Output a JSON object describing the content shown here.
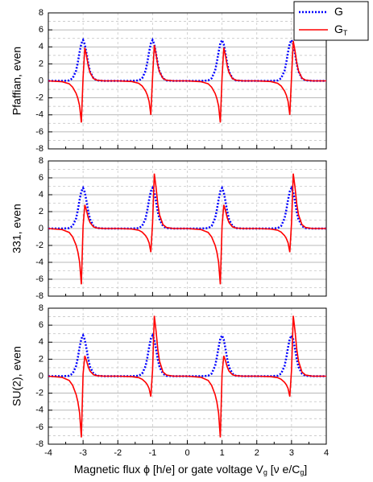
{
  "chart_data": [
    {
      "type": "line",
      "ylabel": "Pfaffian, even",
      "legend": "upper right",
      "x": [
        -4,
        -3.6,
        -3.4,
        -3.3,
        -3.2,
        -3.15,
        -3.1,
        -3.05,
        -3,
        -2.95,
        -2.9,
        -2.85,
        -2.8,
        -2.7,
        -2.6,
        -2.4,
        -2,
        -1.6,
        -1.4,
        -1.3,
        -1.2,
        -1.15,
        -1.1,
        -1.05,
        -1,
        -0.95,
        -0.9,
        -0.85,
        -0.8,
        -0.7,
        -0.6,
        -0.4,
        0,
        0.4,
        0.6,
        0.7,
        0.8,
        0.85,
        0.9,
        0.95,
        1,
        1.05,
        1.1,
        1.15,
        1.2,
        1.3,
        1.4,
        1.6,
        2,
        2.4,
        2.6,
        2.7,
        2.8,
        2.85,
        2.9,
        2.95,
        3,
        3.05,
        3.1,
        3.15,
        3.2,
        3.3,
        3.4,
        3.6,
        4
      ],
      "xlim": [
        -4,
        4
      ],
      "xticks": [
        -4,
        -3,
        -2,
        -1,
        0,
        1,
        2,
        3,
        4
      ],
      "xminor": [
        -3.5,
        -2.5,
        -1.5,
        -0.5,
        0.5,
        1.5,
        2.5,
        3.5
      ],
      "ylim": [
        -8,
        8
      ],
      "yticks": [
        -8,
        -6,
        -4,
        -2,
        0,
        2,
        4,
        6,
        8
      ],
      "yminor": [
        -7,
        -5,
        -3,
        -1,
        1,
        3,
        5,
        7
      ],
      "grid": true,
      "series": [
        {
          "name": "G",
          "color": "#0000ff",
          "style": "dotted",
          "values": [
            0,
            0,
            0.05,
            0.3,
            1.2,
            2.2,
            3.4,
            4.4,
            4.8,
            4.3,
            3.2,
            2.0,
            1.1,
            0.3,
            0.05,
            0,
            0,
            0,
            0.05,
            0.3,
            1.2,
            2.2,
            3.4,
            4.4,
            4.8,
            4.3,
            3.2,
            2.0,
            1.1,
            0.3,
            0.05,
            0,
            0,
            0,
            0.05,
            0.3,
            1.2,
            2.2,
            3.4,
            4.4,
            4.8,
            4.3,
            3.2,
            2.0,
            1.1,
            0.3,
            0.05,
            0,
            0,
            0,
            0.05,
            0.3,
            1.2,
            2.2,
            3.4,
            4.4,
            4.8,
            4.3,
            3.2,
            2.0,
            1.1,
            0.3,
            0.05,
            0,
            0
          ]
        },
        {
          "name": "G",
          "subscript": "T",
          "color": "#ff0000",
          "style": "solid",
          "values": [
            0,
            -0.1,
            -0.34,
            -0.74,
            -1.47,
            -2.06,
            -2.94,
            -4.9,
            0.39,
            3.9,
            2.93,
            1.76,
            0.98,
            0.27,
            0.08,
            0,
            0,
            -0.08,
            -0.28,
            -0.6,
            -1.2,
            -1.68,
            -2.4,
            -4.0,
            0.42,
            4.2,
            3.15,
            1.89,
            1.05,
            0.29,
            0.08,
            0,
            0,
            -0.1,
            -0.34,
            -0.74,
            -1.47,
            -2.06,
            -2.94,
            -4.9,
            0.39,
            3.9,
            2.93,
            1.76,
            0.98,
            0.27,
            0.08,
            0,
            0,
            -0.08,
            -0.28,
            -0.6,
            -1.2,
            -1.68,
            -2.4,
            -4.0,
            0.47,
            4.7,
            3.53,
            2.12,
            1.18,
            0.33,
            0.09,
            0,
            0
          ]
        }
      ]
    },
    {
      "type": "line",
      "ylabel": "331, even",
      "x": [
        -4,
        -3.6,
        -3.4,
        -3.3,
        -3.2,
        -3.15,
        -3.1,
        -3.05,
        -3,
        -2.95,
        -2.9,
        -2.85,
        -2.8,
        -2.7,
        -2.6,
        -2.4,
        -2,
        -1.6,
        -1.4,
        -1.3,
        -1.2,
        -1.15,
        -1.1,
        -1.05,
        -1,
        -0.95,
        -0.9,
        -0.85,
        -0.8,
        -0.7,
        -0.6,
        -0.4,
        0,
        0.4,
        0.6,
        0.7,
        0.8,
        0.85,
        0.9,
        0.95,
        1,
        1.05,
        1.1,
        1.15,
        1.2,
        1.3,
        1.4,
        1.6,
        2,
        2.4,
        2.6,
        2.7,
        2.8,
        2.85,
        2.9,
        2.95,
        3,
        3.05,
        3.1,
        3.15,
        3.2,
        3.3,
        3.4,
        3.6,
        4
      ],
      "xlim": [
        -4,
        4
      ],
      "xticks": [
        -4,
        -3,
        -2,
        -1,
        0,
        1,
        2,
        3,
        4
      ],
      "xminor": [
        -3.5,
        -2.5,
        -1.5,
        -0.5,
        0.5,
        1.5,
        2.5,
        3.5
      ],
      "ylim": [
        -8,
        8
      ],
      "yticks": [
        -8,
        -6,
        -4,
        -2,
        0,
        2,
        4,
        6,
        8
      ],
      "yminor": [
        -7,
        -5,
        -3,
        -1,
        1,
        3,
        5,
        7
      ],
      "grid": true,
      "series": [
        {
          "name": "G",
          "color": "#0000ff",
          "style": "dotted",
          "values": [
            0,
            0,
            0.05,
            0.3,
            1.2,
            2.2,
            3.4,
            4.4,
            4.8,
            4.3,
            3.2,
            2.0,
            1.1,
            0.3,
            0.05,
            0,
            0,
            0,
            0.05,
            0.3,
            1.2,
            2.2,
            3.4,
            4.4,
            4.8,
            4.3,
            3.2,
            2.0,
            1.1,
            0.3,
            0.05,
            0,
            0,
            0,
            0.05,
            0.3,
            1.2,
            2.2,
            3.4,
            4.4,
            4.8,
            4.3,
            3.2,
            2.0,
            1.1,
            0.3,
            0.05,
            0,
            0,
            0,
            0.05,
            0.3,
            1.2,
            2.2,
            3.4,
            4.4,
            4.8,
            4.3,
            3.2,
            2.0,
            1.1,
            0.3,
            0.05,
            0,
            0
          ]
        },
        {
          "name": "G",
          "subscript": "T",
          "color": "#ff0000",
          "style": "solid",
          "values": [
            0,
            -0.13,
            -0.46,
            -0.99,
            -1.98,
            -2.77,
            -3.96,
            -6.6,
            0.28,
            2.8,
            2.1,
            1.26,
            0.7,
            0.2,
            0.06,
            0,
            0,
            -0.06,
            -0.2,
            -0.42,
            -0.84,
            -1.18,
            -1.68,
            -2.8,
            0.65,
            6.5,
            4.88,
            2.93,
            1.63,
            0.46,
            0.13,
            0,
            0,
            -0.13,
            -0.46,
            -0.99,
            -1.98,
            -2.77,
            -3.96,
            -6.6,
            0.28,
            2.8,
            2.1,
            1.26,
            0.7,
            0.2,
            0.06,
            0,
            0,
            -0.06,
            -0.2,
            -0.42,
            -0.84,
            -1.18,
            -1.68,
            -2.8,
            0.65,
            6.5,
            4.88,
            2.93,
            1.63,
            0.46,
            0.13,
            0,
            0
          ]
        }
      ]
    },
    {
      "type": "line",
      "ylabel": "SU(2), even",
      "xlabel": [
        {
          "text": "Magnetic flux ϕ [h/e] or gate voltage V"
        },
        {
          "text": "g",
          "sub": true
        },
        {
          "text": " [ν e/C"
        },
        {
          "text": "g",
          "sub": true
        },
        {
          "text": "]"
        }
      ],
      "x": [
        -4,
        -3.6,
        -3.4,
        -3.3,
        -3.2,
        -3.15,
        -3.1,
        -3.05,
        -3,
        -2.95,
        -2.9,
        -2.85,
        -2.8,
        -2.7,
        -2.6,
        -2.4,
        -2,
        -1.6,
        -1.4,
        -1.3,
        -1.2,
        -1.15,
        -1.1,
        -1.05,
        -1,
        -0.95,
        -0.9,
        -0.85,
        -0.8,
        -0.7,
        -0.6,
        -0.4,
        0,
        0.4,
        0.6,
        0.7,
        0.8,
        0.85,
        0.9,
        0.95,
        1,
        1.05,
        1.1,
        1.15,
        1.2,
        1.3,
        1.4,
        1.6,
        2,
        2.4,
        2.6,
        2.7,
        2.8,
        2.85,
        2.9,
        2.95,
        3,
        3.05,
        3.1,
        3.15,
        3.2,
        3.3,
        3.4,
        3.6,
        4
      ],
      "xlim": [
        -4,
        4
      ],
      "xticks": [
        -4,
        -3,
        -2,
        -1,
        0,
        1,
        2,
        3,
        4
      ],
      "xminor": [
        -3.5,
        -2.5,
        -1.5,
        -0.5,
        0.5,
        1.5,
        2.5,
        3.5
      ],
      "ylim": [
        -8,
        8
      ],
      "yticks": [
        -8,
        -6,
        -4,
        -2,
        0,
        2,
        4,
        6,
        8
      ],
      "yminor": [
        -7,
        -5,
        -3,
        -1,
        1,
        3,
        5,
        7
      ],
      "grid": true,
      "series": [
        {
          "name": "G",
          "color": "#0000ff",
          "style": "dotted",
          "values": [
            0,
            0,
            0.05,
            0.3,
            1.2,
            2.2,
            3.4,
            4.4,
            4.8,
            4.3,
            3.2,
            2.0,
            1.1,
            0.3,
            0.05,
            0,
            0,
            0,
            0.05,
            0.3,
            1.2,
            2.2,
            3.4,
            4.4,
            4.8,
            4.3,
            3.2,
            2.0,
            1.1,
            0.3,
            0.05,
            0,
            0,
            0,
            0.05,
            0.3,
            1.2,
            2.2,
            3.4,
            4.4,
            4.8,
            4.3,
            3.2,
            2.0,
            1.1,
            0.3,
            0.05,
            0,
            0,
            0,
            0.05,
            0.3,
            1.2,
            2.2,
            3.4,
            4.4,
            4.8,
            4.3,
            3.2,
            2.0,
            1.1,
            0.3,
            0.05,
            0,
            0
          ]
        },
        {
          "name": "G",
          "subscript": "T",
          "color": "#ff0000",
          "style": "solid",
          "values": [
            0,
            -0.14,
            -0.5,
            -1.08,
            -2.16,
            -3.02,
            -4.32,
            -7.2,
            0.24,
            2.4,
            1.8,
            1.08,
            0.6,
            0.17,
            0.05,
            0,
            0,
            -0.05,
            -0.17,
            -0.36,
            -0.72,
            -1.01,
            -1.44,
            -2.4,
            0.71,
            7.1,
            5.33,
            3.2,
            1.78,
            0.5,
            0.14,
            0,
            0,
            -0.14,
            -0.5,
            -1.08,
            -2.16,
            -3.02,
            -4.32,
            -7.2,
            0.24,
            2.4,
            1.8,
            1.08,
            0.6,
            0.17,
            0.05,
            0,
            0,
            -0.05,
            -0.17,
            -0.36,
            -0.72,
            -1.01,
            -1.44,
            -2.4,
            0.71,
            7.1,
            5.33,
            3.2,
            1.78,
            0.5,
            0.14,
            0,
            0
          ]
        }
      ]
    }
  ]
}
